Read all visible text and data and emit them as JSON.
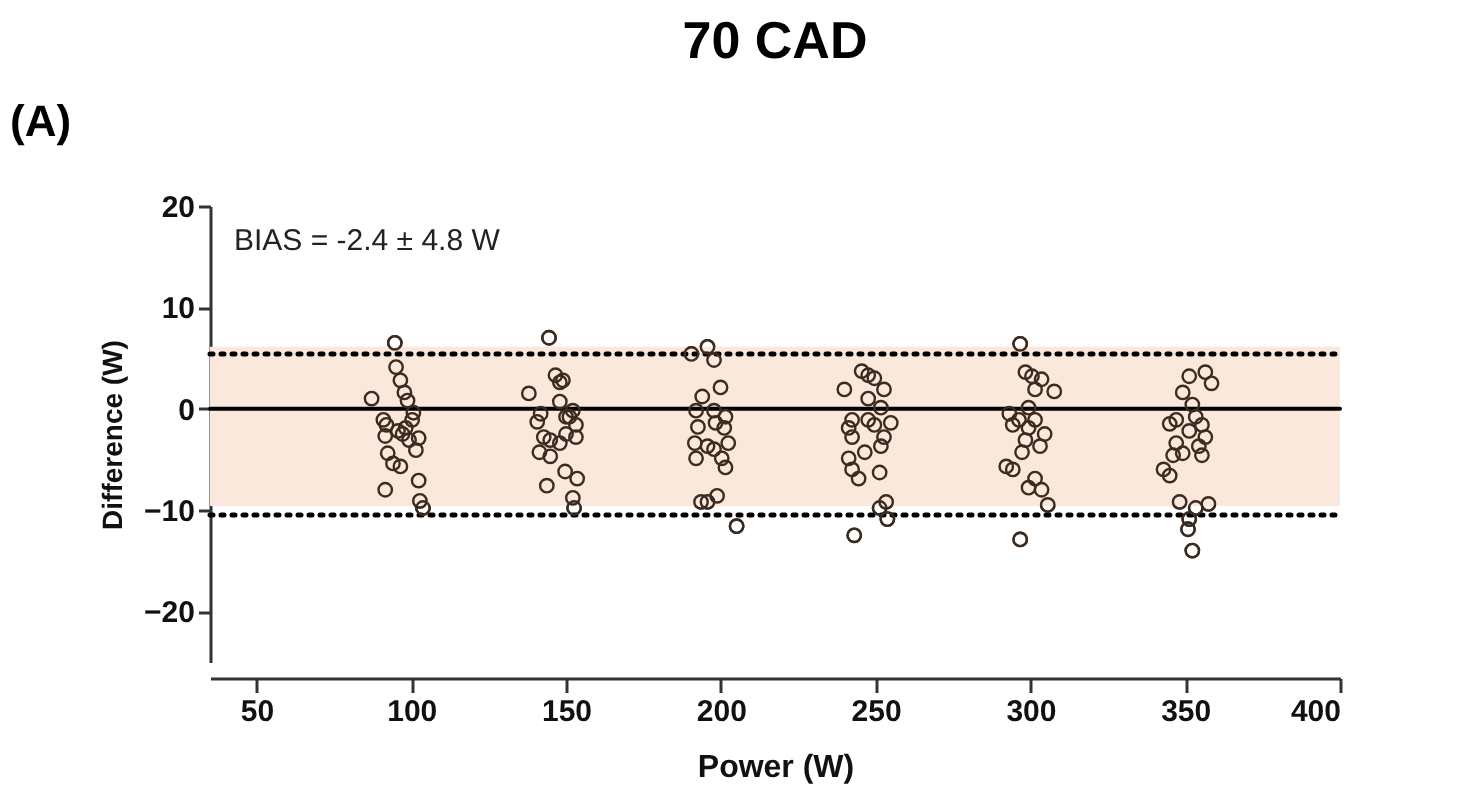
{
  "chart_data": {
    "type": "scatter",
    "title": "70 CAD",
    "xlabel": "Power (W)",
    "ylabel": "Difference (W)",
    "annotations": [
      "(A)",
      "BIAS = -2.4 ± 4.8 W"
    ],
    "xlim": [
      35,
      400
    ],
    "xticks": [
      50,
      100,
      150,
      200,
      250,
      300,
      350,
      400
    ],
    "ylim": [
      -25,
      20
    ],
    "yticks": [
      -20,
      -10,
      0,
      10,
      20
    ],
    "grid": false,
    "ref_lines": [
      {
        "axis": "y",
        "value": 0,
        "label": null,
        "color": "#000000",
        "line_style": "solid"
      },
      {
        "axis": "y",
        "value": 5.4,
        "label": null,
        "color": "#000000",
        "line_style": "dotted"
      },
      {
        "axis": "y",
        "value": -10.5,
        "label": null,
        "color": "#000000",
        "line_style": "dotted"
      }
    ],
    "bands": [
      {
        "axis": "y",
        "from": -9.6,
        "to": 6.1,
        "label": null,
        "color": "#fbe8dc"
      }
    ],
    "series": [
      {
        "color": "#3d2b20",
        "x": [
          94.7,
          95.1,
          96.5,
          97.8,
          98.8,
          87.2,
          100.7,
          91,
          92,
          98.2,
          91.6,
          97.2,
          102.4,
          99.3,
          101.5,
          92.4,
          94.1,
          96.5,
          91.6,
          102.4,
          102.8,
          103.8,
          100.3,
          95.7,
          144.5,
          138,
          146.6,
          148,
          149,
          141.8,
          148,
          152.2,
          150,
          140.7,
          153.2,
          150,
          142.8,
          153.2,
          148,
          144.9,
          141.4,
          144.9,
          149.7,
          153.6,
          143.8,
          152.2,
          152.6,
          151.1,
          190.5,
          195.7,
          197.8,
          199.9,
          194,
          192,
          197.8,
          201.5,
          198.3,
          192.6,
          201.1,
          202.4,
          191.6,
          195.7,
          197.8,
          192,
          200.3,
          201.5,
          198.8,
          193.6,
          195.7,
          205.1,
          245.5,
          247.6,
          249.6,
          239.9,
          252.7,
          247.6,
          251.7,
          242.4,
          247.6,
          254.9,
          249.6,
          241.3,
          252.7,
          242.4,
          251.7,
          246.5,
          241.3,
          242.4,
          244.5,
          251.3,
          253.4,
          251.3,
          253.8,
          243.1,
          296.7,
          298.4,
          300.5,
          303.6,
          301.5,
          307.7,
          293.2,
          299.4,
          296.3,
          301.5,
          294.3,
          299.4,
          304.6,
          298.4,
          303.1,
          297.3,
          292.2,
          294.3,
          301.5,
          299.4,
          303.6,
          305.6,
          296.7,
          351.3,
          356.5,
          358.5,
          349.2,
          352.3,
          347.1,
          353.4,
          345,
          355.4,
          351.3,
          356.5,
          347.1,
          354.4,
          346.1,
          349.2,
          355.4,
          343,
          345,
          348.2,
          357.5,
          353.4,
          351.3,
          350.9,
          352.3
        ],
        "values": [
          6.5,
          4.1,
          2.8,
          1.6,
          0.8,
          1.0,
          -0.4,
          -1.1,
          -1.6,
          -1.9,
          -2.7,
          -2.5,
          -2.9,
          -3.1,
          -4.1,
          -4.4,
          -5.4,
          -5.7,
          -8.0,
          -7.1,
          -9.1,
          -9.8,
          -1.1,
          -2.2,
          7.0,
          1.5,
          3.3,
          2.6,
          2.8,
          -0.5,
          0.7,
          -0.2,
          -0.8,
          -1.3,
          -1.6,
          -2.5,
          -2.8,
          -2.8,
          -3.4,
          -3.1,
          -4.3,
          -4.7,
          -6.2,
          -6.9,
          -7.6,
          -8.8,
          -9.8,
          -0.8,
          5.4,
          6.1,
          4.8,
          2.1,
          1.2,
          -0.2,
          -0.2,
          -0.8,
          -1.4,
          -1.8,
          -1.9,
          -3.4,
          -3.4,
          -3.7,
          -4.0,
          -4.9,
          -4.9,
          -5.8,
          -8.6,
          -9.2,
          -9.2,
          -11.6,
          3.7,
          3.3,
          3.0,
          1.9,
          1.9,
          1.0,
          0.1,
          -1.1,
          -1.1,
          -1.4,
          -1.6,
          -1.9,
          -2.8,
          -2.8,
          -3.7,
          -4.3,
          -4.9,
          -6.0,
          -6.9,
          -6.3,
          -9.2,
          -9.8,
          -10.9,
          -12.5,
          6.4,
          3.6,
          3.2,
          2.9,
          1.9,
          1.7,
          -0.5,
          0.1,
          -1.1,
          -1.1,
          -1.6,
          -1.9,
          -2.5,
          -3.1,
          -3.7,
          -4.3,
          -5.7,
          -6.0,
          -6.9,
          -7.8,
          -8.0,
          -9.5,
          -12.9,
          3.2,
          3.6,
          2.5,
          1.6,
          0.4,
          -1.1,
          -0.8,
          -1.5,
          -1.6,
          -2.2,
          -2.8,
          -3.4,
          -3.7,
          -4.6,
          -4.4,
          -4.6,
          -6.0,
          -6.6,
          -9.2,
          -9.4,
          -9.8,
          -10.9,
          -11.9,
          -14.0
        ]
      }
    ]
  }
}
